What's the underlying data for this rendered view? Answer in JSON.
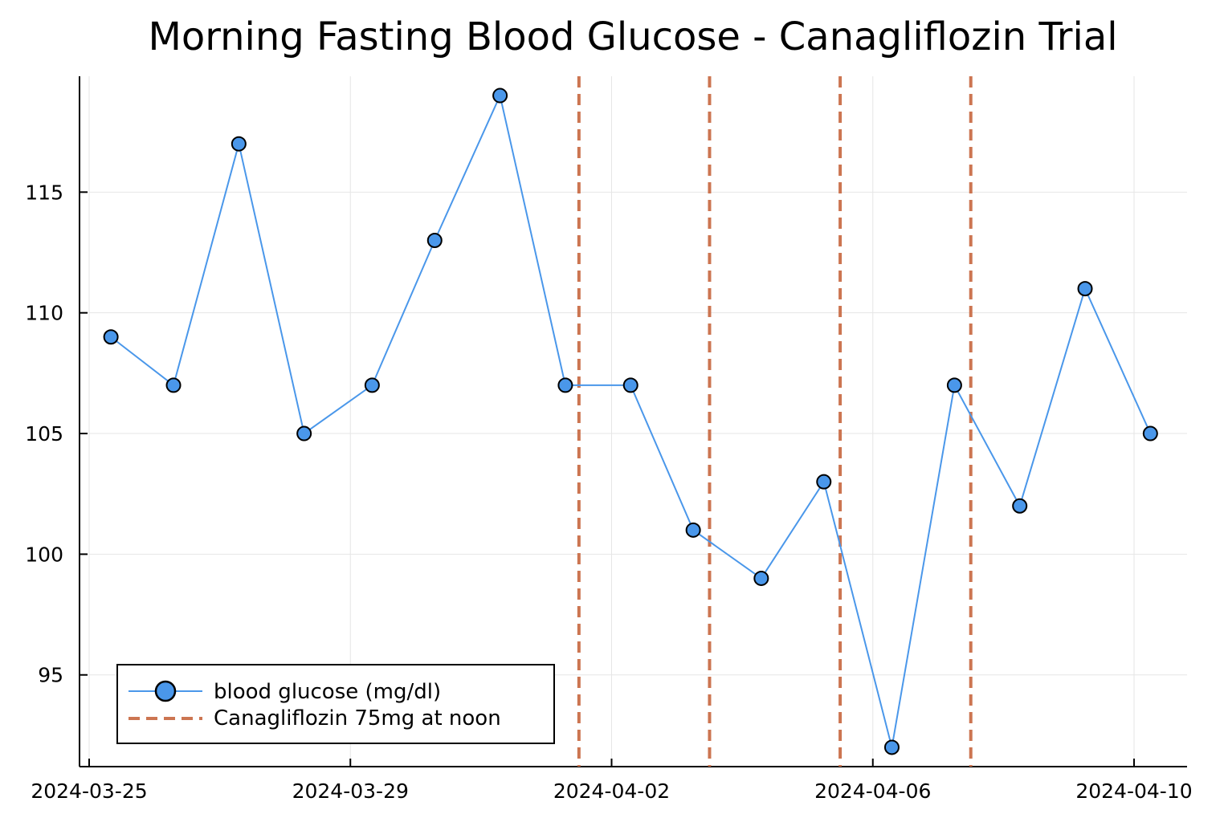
{
  "chart_data": {
    "type": "line",
    "title": "Morning Fasting Blood Glucose - Canagliflozin Trial",
    "xlabel": "",
    "ylabel": "",
    "x_axis_kind": "date",
    "x_range": [
      "2024-03-25",
      "2024-04-10"
    ],
    "ylim": [
      91.2,
      119.8
    ],
    "x_ticks": [
      "2024-03-25",
      "2024-03-29",
      "2024-04-02",
      "2024-04-06",
      "2024-04-10"
    ],
    "y_ticks": [
      95,
      100,
      105,
      110,
      115
    ],
    "grid": true,
    "legend_position": "bottom-left",
    "series": [
      {
        "name": "blood glucose (mg/dl)",
        "color": "#4a97ea",
        "marker": "circle",
        "x": [
          "2024-03-25 08:00",
          "2024-03-26 07:00",
          "2024-03-27 07:00",
          "2024-03-28 07:00",
          "2024-03-29 08:00",
          "2024-03-30 07:00",
          "2024-03-31 07:00",
          "2024-04-01 07:00",
          "2024-04-02 07:00",
          "2024-04-03 06:00",
          "2024-04-04 07:00",
          "2024-04-05 06:00",
          "2024-04-06 07:00",
          "2024-04-07 06:00",
          "2024-04-08 06:00",
          "2024-04-09 06:00",
          "2024-04-10 06:00"
        ],
        "y": [
          109,
          107,
          117,
          105,
          107,
          113,
          119,
          107,
          107,
          101,
          99,
          103,
          92,
          107,
          102,
          111,
          105
        ]
      },
      {
        "name": "Canagliflozin 75mg at noon",
        "color": "#cc7551",
        "style": "dashed-vertical",
        "x": [
          "2024-04-01 12:00",
          "2024-04-03 12:00",
          "2024-04-05 12:00",
          "2024-04-07 12:00"
        ]
      }
    ]
  }
}
